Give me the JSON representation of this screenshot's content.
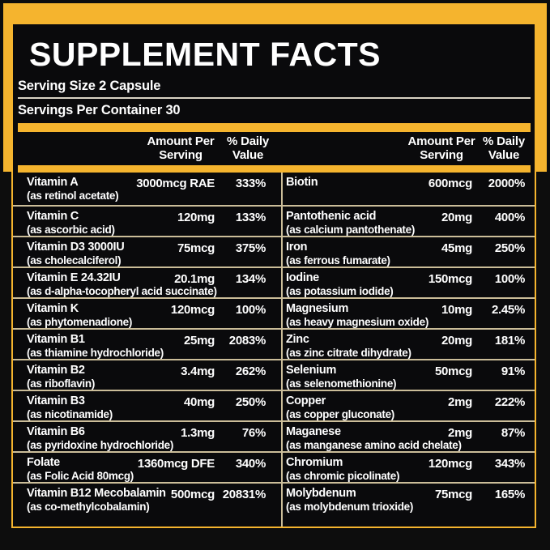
{
  "colors": {
    "accent_yellow": "#F5B42E",
    "row_divider_tan": "#CBBD99",
    "serving_divider": "#D9D3C4",
    "panel_background": "#0A0A0C",
    "outer_background": "#0D0D0D",
    "text": "#FFFFFF"
  },
  "title": "SUPPLEMENT FACTS",
  "serving": {
    "size": "Serving Size 2 Capsule",
    "per_container": "Servings Per Container 30"
  },
  "columns": {
    "amount_line1": "Amount Per",
    "amount_line2": "Serving",
    "dv_line1": "% Daily",
    "dv_line2": "Value"
  },
  "nutrients": {
    "left": [
      {
        "name": "Vitamin A",
        "detail": "(as retinol acetate)",
        "amount": "3000mcg RAE",
        "dv": "333%"
      },
      {
        "name": "Vitamin C",
        "detail": "(as ascorbic acid)",
        "amount": "120mg",
        "dv": "133%"
      },
      {
        "name": "Vitamin D3 3000IU",
        "detail": "(as cholecalciferol)",
        "amount": "75mcg",
        "dv": "375%"
      },
      {
        "name": "Vitamin E 24.32IU",
        "detail": "(as d-alpha-tocopheryl acid succinate)",
        "amount": "20.1mg",
        "dv": "134%"
      },
      {
        "name": "Vitamin K",
        "detail": "(as phytomenadione)",
        "amount": "120mcg",
        "dv": "100%"
      },
      {
        "name": "Vitamin B1",
        "detail": "(as thiamine hydrochloride)",
        "amount": "25mg",
        "dv": "2083%"
      },
      {
        "name": "Vitamin B2",
        "detail": "(as riboflavin)",
        "amount": "3.4mg",
        "dv": "262%"
      },
      {
        "name": "Vitamin B3",
        "detail": "(as nicotinamide)",
        "amount": "40mg",
        "dv": "250%"
      },
      {
        "name": "Vitamin B6",
        "detail": "(as pyridoxine hydrochloride)",
        "amount": "1.3mg",
        "dv": "76%"
      },
      {
        "name": "Folate",
        "detail": "(as Folic Acid 80mcg)",
        "amount": "1360mcg DFE",
        "dv": "340%"
      },
      {
        "name": "Vitamin B12 Mecobalamin",
        "detail": "(as co-methylcobalamin)",
        "amount": "500mcg",
        "dv": "20831%"
      }
    ],
    "right": [
      {
        "name": "Biotin",
        "detail": "",
        "amount": "600mcg",
        "dv": "2000%"
      },
      {
        "name": "Pantothenic acid",
        "detail": "(as calcium pantothenate)",
        "amount": "20mg",
        "dv": "400%"
      },
      {
        "name": "Iron",
        "detail": "(as ferrous fumarate)",
        "amount": "45mg",
        "dv": "250%"
      },
      {
        "name": "Iodine",
        "detail": "(as potassium iodide)",
        "amount": "150mcg",
        "dv": "100%"
      },
      {
        "name": "Magnesium",
        "detail": "(as heavy magnesium oxide)",
        "amount": "10mg",
        "dv": "2.45%"
      },
      {
        "name": "Zinc",
        "detail": "(as zinc citrate dihydrate)",
        "amount": "20mg",
        "dv": "181%"
      },
      {
        "name": "Selenium",
        "detail": "(as selenomethionine)",
        "amount": "50mcg",
        "dv": "91%"
      },
      {
        "name": "Copper",
        "detail": "(as copper gluconate)",
        "amount": "2mg",
        "dv": "222%"
      },
      {
        "name": "Maganese",
        "detail": "(as manganese amino acid chelate)",
        "amount": "2mg",
        "dv": "87%"
      },
      {
        "name": "Chromium",
        "detail": "(as chromic picolinate)",
        "amount": "120mcg",
        "dv": "343%"
      },
      {
        "name": "Molybdenum",
        "detail": "(as molybdenum trioxide)",
        "amount": "75mcg",
        "dv": "165%"
      }
    ]
  }
}
